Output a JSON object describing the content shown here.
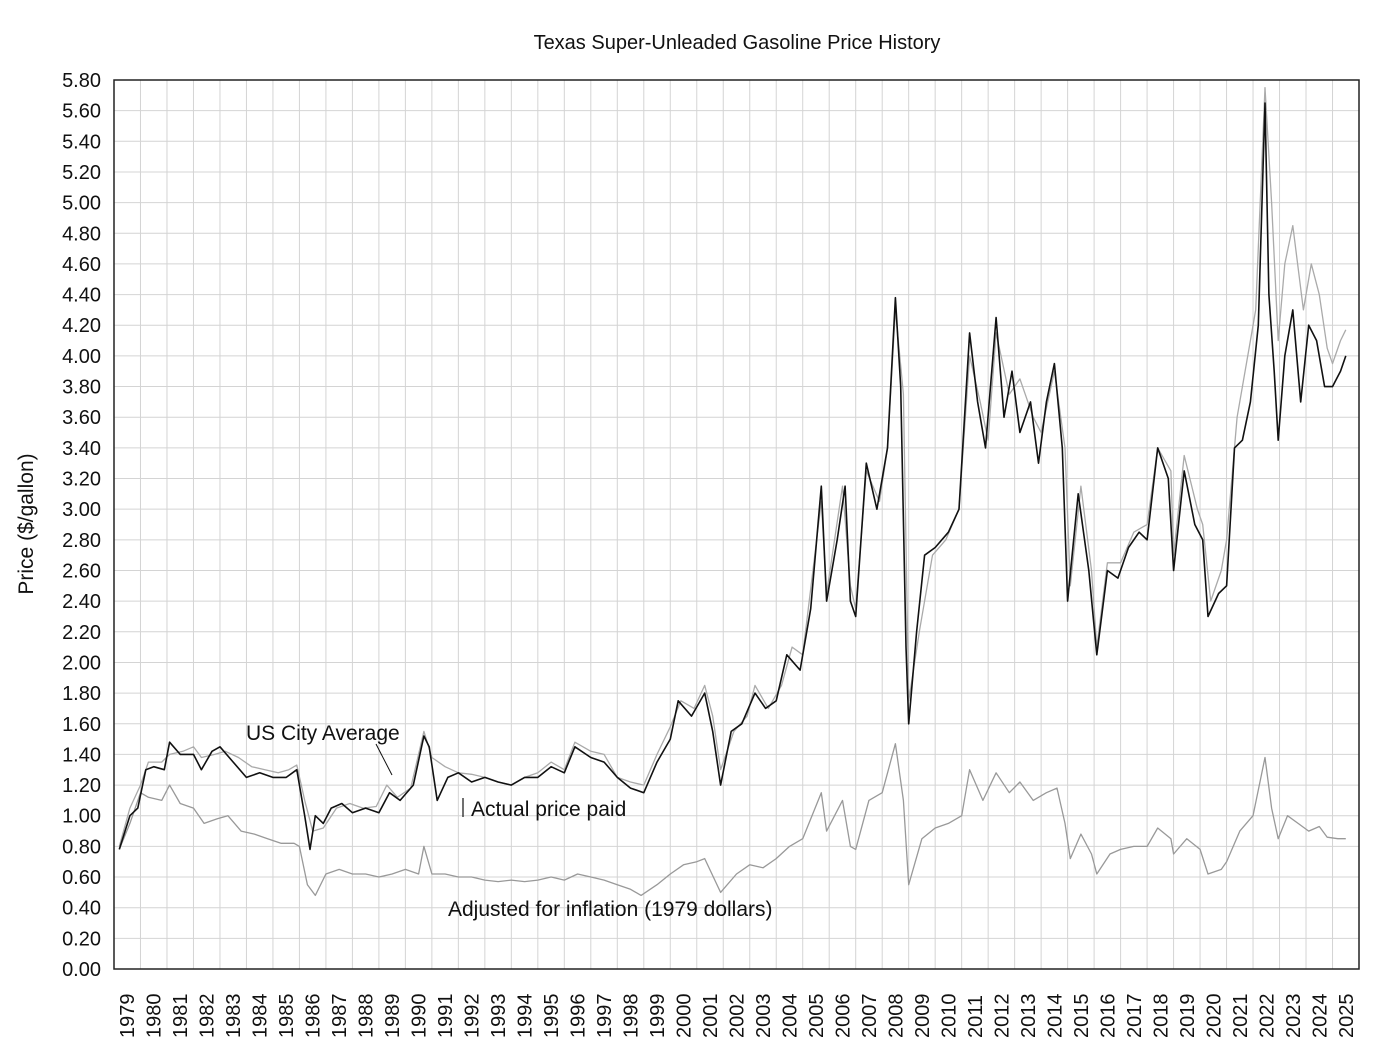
{
  "chart_data": {
    "type": "line",
    "title": "Texas Super-Unleaded Gasoline Price History",
    "xlabel": "",
    "ylabel": "Price ($/gallon)",
    "xlim": [
      1979,
      2026
    ],
    "ylim": [
      0,
      5.8
    ],
    "ytick_step": 0.2,
    "grid": true,
    "x_tick_labels": [
      "1979",
      "1980",
      "1981",
      "1982",
      "1983",
      "1984",
      "1985",
      "1986",
      "1987",
      "1988",
      "1989",
      "1990",
      "1991",
      "1992",
      "1993",
      "1994",
      "1995",
      "1996",
      "1997",
      "1998",
      "1999",
      "2000",
      "2001",
      "2002",
      "2003",
      "2004",
      "2005",
      "2006",
      "2007",
      "2008",
      "2009",
      "2010",
      "2011",
      "2012",
      "2013",
      "2014",
      "2015",
      "2016",
      "2017",
      "2018",
      "2019",
      "2020",
      "2021",
      "2022",
      "2023",
      "2024",
      "2025"
    ],
    "y_tick_labels": [
      "0.00",
      "0.20",
      "0.40",
      "0.60",
      "0.80",
      "1.00",
      "1.20",
      "1.40",
      "1.60",
      "1.80",
      "2.00",
      "2.20",
      "2.40",
      "2.60",
      "2.80",
      "3.00",
      "3.20",
      "3.40",
      "3.60",
      "3.80",
      "4.00",
      "4.20",
      "4.40",
      "4.60",
      "4.80",
      "5.00",
      "5.20",
      "5.40",
      "5.60",
      "5.80"
    ],
    "series": [
      {
        "name": "US City Average",
        "color": "#aaaaaa",
        "x": [
          1979.2,
          1979.6,
          1980.0,
          1980.3,
          1980.8,
          1981.1,
          1981.6,
          1982.0,
          1982.3,
          1982.8,
          1983.2,
          1983.7,
          1984.2,
          1984.7,
          1985.2,
          1985.6,
          1985.9,
          1986.2,
          1986.5,
          1986.9,
          1987.4,
          1987.9,
          1988.4,
          1988.9,
          1989.3,
          1989.7,
          1990.2,
          1990.7,
          1991.0,
          1991.5,
          1992.0,
          1992.5,
          1993.0,
          1993.5,
          1994.0,
          1994.5,
          1995.0,
          1995.5,
          1996.0,
          1996.4,
          1997.0,
          1997.5,
          1998.0,
          1998.5,
          1999.0,
          1999.5,
          2000.0,
          2000.4,
          2000.9,
          2001.3,
          2001.6,
          2001.9,
          2002.4,
          2002.9,
          2003.2,
          2003.7,
          2004.2,
          2004.6,
          2005.0,
          2005.7,
          2005.9,
          2006.5,
          2006.8,
          2007.0,
          2007.4,
          2007.9,
          2008.2,
          2008.5,
          2008.8,
          2009.0,
          2009.4,
          2009.9,
          2010.4,
          2010.9,
          2011.3,
          2011.7,
          2012.0,
          2012.3,
          2012.8,
          2013.2,
          2013.7,
          2014.0,
          2014.5,
          2014.9,
          2015.1,
          2015.5,
          2015.9,
          2016.1,
          2016.5,
          2017.0,
          2017.5,
          2018.0,
          2018.4,
          2018.9,
          2019.0,
          2019.4,
          2019.9,
          2020.1,
          2020.4,
          2020.8,
          2021.0,
          2021.4,
          2021.9,
          2022.1,
          2022.45,
          2022.7,
          2022.95,
          2023.2,
          2023.5,
          2023.9,
          2024.2,
          2024.5,
          2024.8,
          2025.0,
          2025.3,
          2025.5
        ],
        "y": [
          0.8,
          1.05,
          1.2,
          1.35,
          1.35,
          1.4,
          1.42,
          1.45,
          1.38,
          1.4,
          1.42,
          1.38,
          1.32,
          1.3,
          1.28,
          1.3,
          1.33,
          1.1,
          0.9,
          0.92,
          1.05,
          1.08,
          1.05,
          1.06,
          1.2,
          1.12,
          1.18,
          1.55,
          1.38,
          1.32,
          1.28,
          1.27,
          1.25,
          1.22,
          1.2,
          1.25,
          1.28,
          1.35,
          1.3,
          1.48,
          1.42,
          1.4,
          1.25,
          1.22,
          1.2,
          1.4,
          1.58,
          1.75,
          1.7,
          1.85,
          1.65,
          1.3,
          1.55,
          1.65,
          1.85,
          1.7,
          1.85,
          2.1,
          2.05,
          3.05,
          2.45,
          3.15,
          2.5,
          2.35,
          3.25,
          3.05,
          3.4,
          4.3,
          3.75,
          1.75,
          2.2,
          2.7,
          2.8,
          3.0,
          4.0,
          3.7,
          3.45,
          4.15,
          3.75,
          3.85,
          3.6,
          3.5,
          3.9,
          3.4,
          2.5,
          3.15,
          2.6,
          2.1,
          2.65,
          2.65,
          2.85,
          2.9,
          3.4,
          3.25,
          2.7,
          3.35,
          3.0,
          2.9,
          2.4,
          2.6,
          2.8,
          3.6,
          4.1,
          4.3,
          5.75,
          5.0,
          4.1,
          4.6,
          4.85,
          4.3,
          4.6,
          4.4,
          4.05,
          3.95,
          4.1,
          4.17
        ]
      },
      {
        "name": "Actual price paid",
        "color": "#111111",
        "x": [
          1979.2,
          1979.6,
          1979.9,
          1980.2,
          1980.5,
          1980.9,
          1981.1,
          1981.5,
          1982.0,
          1982.3,
          1982.7,
          1983.0,
          1983.5,
          1984.0,
          1984.5,
          1985.0,
          1985.5,
          1985.9,
          1986.2,
          1986.4,
          1986.6,
          1986.9,
          1987.2,
          1987.6,
          1988.0,
          1988.5,
          1989.0,
          1989.4,
          1989.8,
          1990.3,
          1990.7,
          1990.9,
          1991.2,
          1991.6,
          1992.0,
          1992.5,
          1993.0,
          1993.5,
          1994.0,
          1994.5,
          1995.0,
          1995.5,
          1996.0,
          1996.4,
          1997.0,
          1997.5,
          1998.0,
          1998.5,
          1999.0,
          1999.5,
          2000.0,
          2000.3,
          2000.8,
          2001.3,
          2001.6,
          2001.9,
          2002.3,
          2002.7,
          2003.2,
          2003.6,
          2004.0,
          2004.4,
          2004.9,
          2005.3,
          2005.7,
          2005.9,
          2006.3,
          2006.6,
          2006.8,
          2007.0,
          2007.4,
          2007.8,
          2008.2,
          2008.5,
          2008.7,
          2008.9,
          2009.0,
          2009.3,
          2009.6,
          2010.0,
          2010.5,
          2010.9,
          2011.3,
          2011.6,
          2011.9,
          2012.3,
          2012.6,
          2012.9,
          2013.2,
          2013.6,
          2013.9,
          2014.2,
          2014.5,
          2014.8,
          2015.0,
          2015.4,
          2015.8,
          2016.1,
          2016.5,
          2016.9,
          2017.3,
          2017.7,
          2018.0,
          2018.4,
          2018.8,
          2019.0,
          2019.4,
          2019.8,
          2020.1,
          2020.3,
          2020.7,
          2021.0,
          2021.3,
          2021.6,
          2021.9,
          2022.2,
          2022.45,
          2022.6,
          2022.8,
          2022.95,
          2023.2,
          2023.5,
          2023.8,
          2024.1,
          2024.4,
          2024.7,
          2025.0,
          2025.3,
          2025.5
        ],
        "y": [
          0.78,
          1.0,
          1.05,
          1.3,
          1.32,
          1.3,
          1.48,
          1.4,
          1.4,
          1.3,
          1.42,
          1.45,
          1.35,
          1.25,
          1.28,
          1.25,
          1.25,
          1.3,
          1.0,
          0.78,
          1.0,
          0.95,
          1.05,
          1.08,
          1.02,
          1.05,
          1.02,
          1.15,
          1.1,
          1.2,
          1.52,
          1.45,
          1.1,
          1.25,
          1.28,
          1.22,
          1.25,
          1.22,
          1.2,
          1.25,
          1.25,
          1.32,
          1.28,
          1.45,
          1.38,
          1.35,
          1.25,
          1.18,
          1.15,
          1.35,
          1.5,
          1.75,
          1.65,
          1.8,
          1.55,
          1.2,
          1.55,
          1.6,
          1.8,
          1.7,
          1.75,
          2.05,
          1.95,
          2.35,
          3.15,
          2.4,
          2.8,
          3.15,
          2.4,
          2.3,
          3.3,
          3.0,
          3.4,
          4.38,
          3.8,
          2.1,
          1.6,
          2.2,
          2.7,
          2.75,
          2.85,
          3.0,
          4.15,
          3.7,
          3.4,
          4.25,
          3.6,
          3.9,
          3.5,
          3.7,
          3.3,
          3.7,
          3.95,
          3.4,
          2.4,
          3.1,
          2.6,
          2.05,
          2.6,
          2.55,
          2.75,
          2.85,
          2.8,
          3.4,
          3.2,
          2.6,
          3.25,
          2.9,
          2.8,
          2.3,
          2.45,
          2.5,
          3.4,
          3.45,
          3.7,
          4.2,
          5.65,
          4.4,
          3.9,
          3.45,
          4.0,
          4.3,
          3.7,
          4.2,
          4.1,
          3.8,
          3.8,
          3.9,
          4.0
        ]
      },
      {
        "name": "Adjusted for inflation (1979 dollars)",
        "color": "#999999",
        "x": [
          1979.2,
          1979.6,
          1980.0,
          1980.3,
          1980.8,
          1981.1,
          1981.5,
          1982.0,
          1982.4,
          1982.9,
          1983.3,
          1983.8,
          1984.3,
          1984.8,
          1985.3,
          1985.8,
          1986.0,
          1986.3,
          1986.6,
          1987.0,
          1987.5,
          1988.0,
          1988.5,
          1989.0,
          1989.5,
          1990.0,
          1990.5,
          1990.7,
          1991.0,
          1991.5,
          1992.0,
          1992.5,
          1993.0,
          1993.5,
          1994.0,
          1994.5,
          1995.0,
          1995.5,
          1996.0,
          1996.5,
          1997.0,
          1997.5,
          1998.0,
          1998.5,
          1998.9,
          1999.5,
          2000.0,
          2000.5,
          2001.0,
          2001.3,
          2001.9,
          2002.5,
          2003.0,
          2003.5,
          2004.0,
          2004.5,
          2005.0,
          2005.7,
          2005.9,
          2006.5,
          2006.8,
          2007.0,
          2007.5,
          2008.0,
          2008.5,
          2008.8,
          2009.0,
          2009.5,
          2010.0,
          2010.5,
          2011.0,
          2011.3,
          2011.8,
          2012.3,
          2012.8,
          2013.2,
          2013.7,
          2014.2,
          2014.6,
          2014.9,
          2015.1,
          2015.5,
          2015.9,
          2016.1,
          2016.6,
          2017.0,
          2017.5,
          2018.0,
          2018.4,
          2018.9,
          2019.0,
          2019.5,
          2020.0,
          2020.3,
          2020.8,
          2021.0,
          2021.5,
          2022.0,
          2022.45,
          2022.7,
          2022.95,
          2023.3,
          2023.7,
          2024.1,
          2024.5,
          2024.8,
          2025.2,
          2025.5
        ],
        "y": [
          0.78,
          0.95,
          1.15,
          1.12,
          1.1,
          1.2,
          1.08,
          1.05,
          0.95,
          0.98,
          1.0,
          0.9,
          0.88,
          0.85,
          0.82,
          0.82,
          0.8,
          0.55,
          0.48,
          0.62,
          0.65,
          0.62,
          0.62,
          0.6,
          0.62,
          0.65,
          0.62,
          0.8,
          0.62,
          0.62,
          0.6,
          0.6,
          0.58,
          0.57,
          0.58,
          0.57,
          0.58,
          0.6,
          0.58,
          0.62,
          0.6,
          0.58,
          0.55,
          0.52,
          0.48,
          0.55,
          0.62,
          0.68,
          0.7,
          0.72,
          0.5,
          0.62,
          0.68,
          0.66,
          0.72,
          0.8,
          0.85,
          1.15,
          0.9,
          1.1,
          0.8,
          0.78,
          1.1,
          1.15,
          1.47,
          1.1,
          0.55,
          0.85,
          0.92,
          0.95,
          1.0,
          1.3,
          1.1,
          1.28,
          1.15,
          1.22,
          1.1,
          1.15,
          1.18,
          0.95,
          0.72,
          0.88,
          0.75,
          0.62,
          0.75,
          0.78,
          0.8,
          0.8,
          0.92,
          0.85,
          0.75,
          0.85,
          0.78,
          0.62,
          0.65,
          0.7,
          0.9,
          1.0,
          1.38,
          1.05,
          0.85,
          1.0,
          0.95,
          0.9,
          0.93,
          0.86,
          0.85,
          0.85
        ]
      }
    ],
    "annotations": [
      {
        "text": "US City Average",
        "series": "US City Average"
      },
      {
        "text": "Actual price paid",
        "series": "Actual price paid"
      },
      {
        "text": "Adjusted for inflation (1979 dollars)",
        "series": "Adjusted for inflation (1979 dollars)"
      }
    ]
  }
}
